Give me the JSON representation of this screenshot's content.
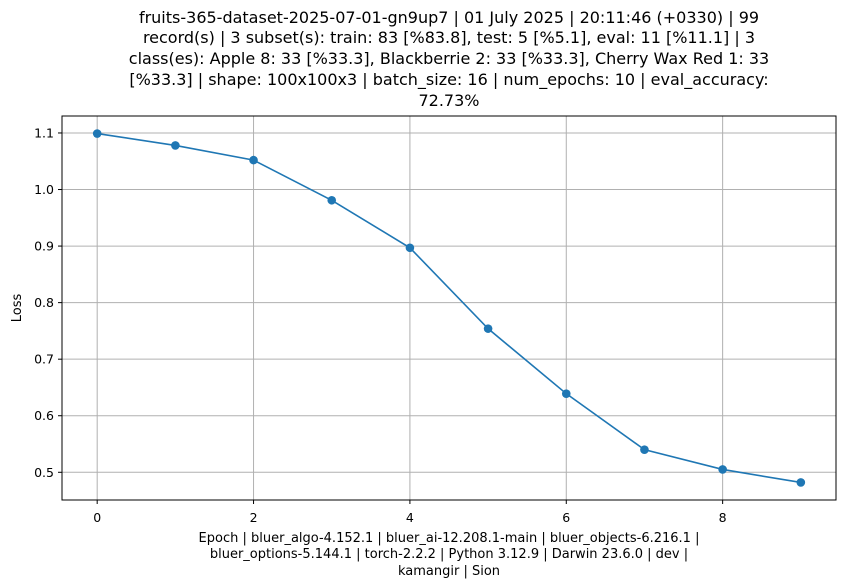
{
  "title_lines": [
    "fruits-365-dataset-2025-07-01-gn9up7 | 01 July 2025 | 20:11:46 (+0330) | 99",
    "record(s) | 3 subset(s): train: 83 [%83.8], test: 5 [%5.1], eval: 11 [%11.1] | 3",
    "class(es): Apple 8: 33 [%33.3], Blackberrie 2: 33 [%33.3], Cherry Wax Red 1: 33",
    "[%33.3] | shape: 100x100x3 | batch_size: 16 | num_epochs: 10 | eval_accuracy:",
    "72.73%"
  ],
  "xlabel_lines": [
    "Epoch | bluer_algo-4.152.1 | bluer_ai-12.208.1-main | bluer_objects-6.216.1 |",
    "bluer_options-5.144.1 | torch-2.2.2 | Python 3.12.9 | Darwin 23.6.0 | dev |",
    "kamangir | Sion"
  ],
  "ylabel": "Loss",
  "colors": {
    "series": "#1f77b4",
    "grid": "#b0b0b0",
    "axis": "#000000"
  },
  "chart_data": {
    "type": "line",
    "x": [
      0,
      1,
      2,
      3,
      4,
      5,
      6,
      7,
      8,
      9
    ],
    "series": [
      {
        "values": [
          1.099,
          1.078,
          1.052,
          0.981,
          0.897,
          0.754,
          0.639,
          0.54,
          0.505,
          0.482
        ],
        "marker": "circle"
      }
    ],
    "xlim": [
      -0.45,
      9.45
    ],
    "ylim": [
      0.451,
      1.13
    ],
    "xticks": [
      0,
      2,
      4,
      6,
      8
    ],
    "xtick_labels": [
      "0",
      "2",
      "4",
      "6",
      "8"
    ],
    "yticks": [
      0.5,
      0.6,
      0.7,
      0.8,
      0.9,
      1.0,
      1.1
    ],
    "ytick_labels": [
      "0.5",
      "0.6",
      "0.7",
      "0.8",
      "0.9",
      "1.0",
      "1.1"
    ],
    "grid": true,
    "legend": "none"
  }
}
